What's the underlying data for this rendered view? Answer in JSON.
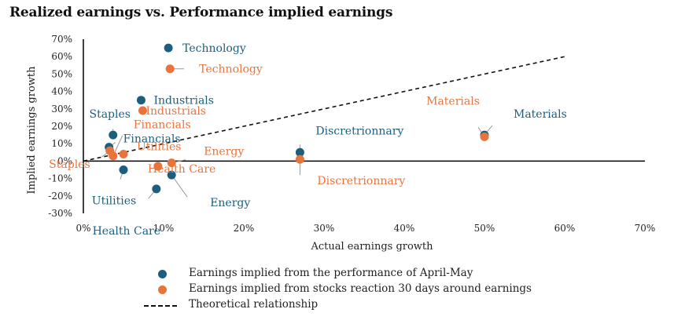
{
  "chart_data": {
    "type": "scatter",
    "title": "Realized earnings vs. Performance implied earnings",
    "xlabel": "Actual earnings growth",
    "ylabel": "Implied earnings growth",
    "xlim": [
      0,
      70
    ],
    "ylim": [
      -30,
      70
    ],
    "x_ticks": [
      "0%",
      "10%",
      "20%",
      "30%",
      "40%",
      "50%",
      "60%",
      "70%"
    ],
    "y_ticks": [
      "70%",
      "60%",
      "50%",
      "40%",
      "30%",
      "20%",
      "10%",
      "0%",
      "-10%",
      "-20%",
      "-30%"
    ],
    "colors": {
      "performance": "#1b5e7e",
      "reaction": "#e8743b",
      "theoretical": "#111111",
      "label_line": "#999999"
    },
    "series": [
      {
        "name": "Earnings implied from the performance of April-May",
        "color": "#1b5e7e",
        "points": [
          {
            "label": "Technology",
            "x": 10.6,
            "y": 65
          },
          {
            "label": "Industrials",
            "x": 7.2,
            "y": 35
          },
          {
            "label": "Staples",
            "x": 3.7,
            "y": 15
          },
          {
            "label": "Financials",
            "x": 3.2,
            "y": 8
          },
          {
            "label": "Utilities",
            "x": 5.0,
            "y": -5
          },
          {
            "label": "Health Care",
            "x": 9.1,
            "y": -16
          },
          {
            "label": "Energy",
            "x": 11.0,
            "y": -8
          },
          {
            "label": "Discretrionnary",
            "x": 27.0,
            "y": 5
          },
          {
            "label": "Materials",
            "x": 50.0,
            "y": 15
          }
        ]
      },
      {
        "name": "Earnings implied from stocks reaction 30 days around earnings",
        "color": "#e8743b",
        "points": [
          {
            "label": "Technology",
            "x": 10.8,
            "y": 53
          },
          {
            "label": "Industrials",
            "x": 7.4,
            "y": 29
          },
          {
            "label": "Financials",
            "x": 3.7,
            "y": 3
          },
          {
            "label": "Staples",
            "x": 3.3,
            "y": 6
          },
          {
            "label": "Utilities",
            "x": 5.0,
            "y": 4
          },
          {
            "label": "Health Care",
            "x": 9.3,
            "y": -3
          },
          {
            "label": "Energy",
            "x": 11.0,
            "y": -1
          },
          {
            "label": "Discretrionnary",
            "x": 27.0,
            "y": 1
          },
          {
            "label": "Materials",
            "x": 50.0,
            "y": 14
          }
        ]
      },
      {
        "name": "Theoretical relationship",
        "type": "line",
        "style": "dashed",
        "color": "#111111",
        "x": [
          0,
          60
        ],
        "y": [
          0,
          60
        ]
      }
    ]
  }
}
